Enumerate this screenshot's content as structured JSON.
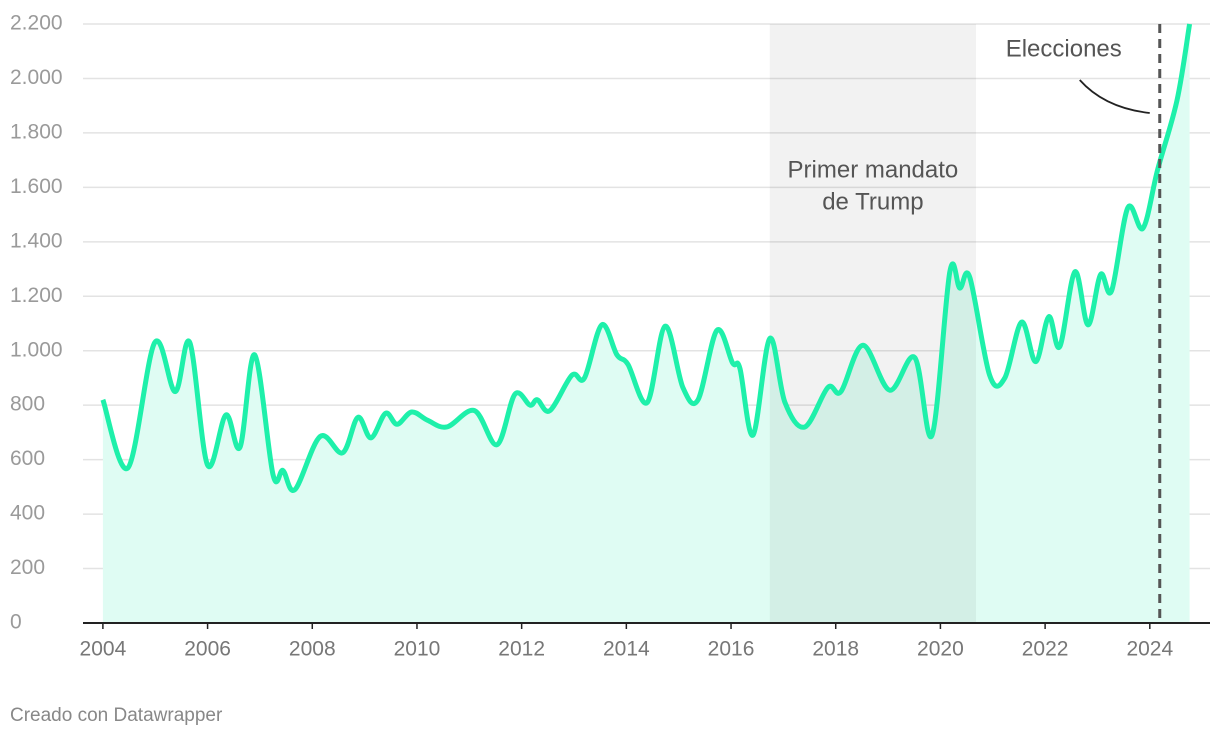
{
  "chart_data": {
    "type": "area",
    "x": [
      2004.0,
      2004.48,
      2004.99,
      2005.38,
      2005.66,
      2006.0,
      2006.35,
      2006.62,
      2006.9,
      2007.25,
      2007.44,
      2007.67,
      2008.15,
      2008.58,
      2008.87,
      2009.12,
      2009.4,
      2009.62,
      2009.9,
      2010.2,
      2010.57,
      2011.1,
      2011.53,
      2011.87,
      2012.16,
      2012.3,
      2012.54,
      2012.96,
      2013.2,
      2013.53,
      2013.82,
      2014.03,
      2014.4,
      2014.74,
      2015.08,
      2015.37,
      2015.73,
      2016.03,
      2016.17,
      2016.42,
      2016.74,
      2017.03,
      2017.41,
      2017.85,
      2018.1,
      2018.52,
      2019.03,
      2019.51,
      2019.84,
      2020.18,
      2020.37,
      2020.56,
      2020.94,
      2021.23,
      2021.55,
      2021.82,
      2022.07,
      2022.28,
      2022.57,
      2022.82,
      2023.06,
      2023.27,
      2023.58,
      2023.87,
      2024.15,
      2024.52,
      2024.76
    ],
    "values": [
      820,
      570,
      1030,
      850,
      1030,
      580,
      764,
      646,
      985,
      545,
      560,
      490,
      685,
      625,
      755,
      680,
      770,
      730,
      775,
      745,
      720,
      780,
      655,
      840,
      800,
      820,
      780,
      910,
      900,
      1095,
      985,
      950,
      810,
      1090,
      865,
      820,
      1075,
      955,
      935,
      690,
      1045,
      810,
      720,
      865,
      850,
      1020,
      855,
      975,
      690,
      1290,
      1230,
      1270,
      910,
      900,
      1105,
      960,
      1125,
      1015,
      1290,
      1095,
      1280,
      1220,
      1525,
      1450,
      1665,
      1920,
      2200
    ],
    "color": "#1ef0aa",
    "area_color": "#dffcf3",
    "xlim": [
      2003.62,
      2025.15
    ],
    "xticks": [
      2004,
      2006,
      2008,
      2010,
      2012,
      2014,
      2016,
      2018,
      2020,
      2022,
      2024
    ],
    "ylim": [
      0,
      2200
    ],
    "yticks": [
      0,
      200,
      400,
      600,
      800,
      {
        "value": 1000,
        "label": "1.000"
      },
      {
        "value": 1200,
        "label": "1.200"
      },
      {
        "value": 1400,
        "label": "1.400"
      },
      {
        "value": 1600,
        "label": "1.600"
      },
      {
        "value": 1800,
        "label": "1.800"
      },
      {
        "value": 2000,
        "label": "2.000"
      },
      {
        "value": 2200,
        "label": "2.200"
      }
    ],
    "grid": true,
    "shaded_range": {
      "x": [
        2016.74,
        2020.68
      ],
      "label_lines": [
        "Primer mandato",
        "de Trump"
      ]
    },
    "event_line": {
      "x": 2024.19,
      "label": "Elecciones"
    },
    "footer": "Creado con Datawrapper"
  }
}
